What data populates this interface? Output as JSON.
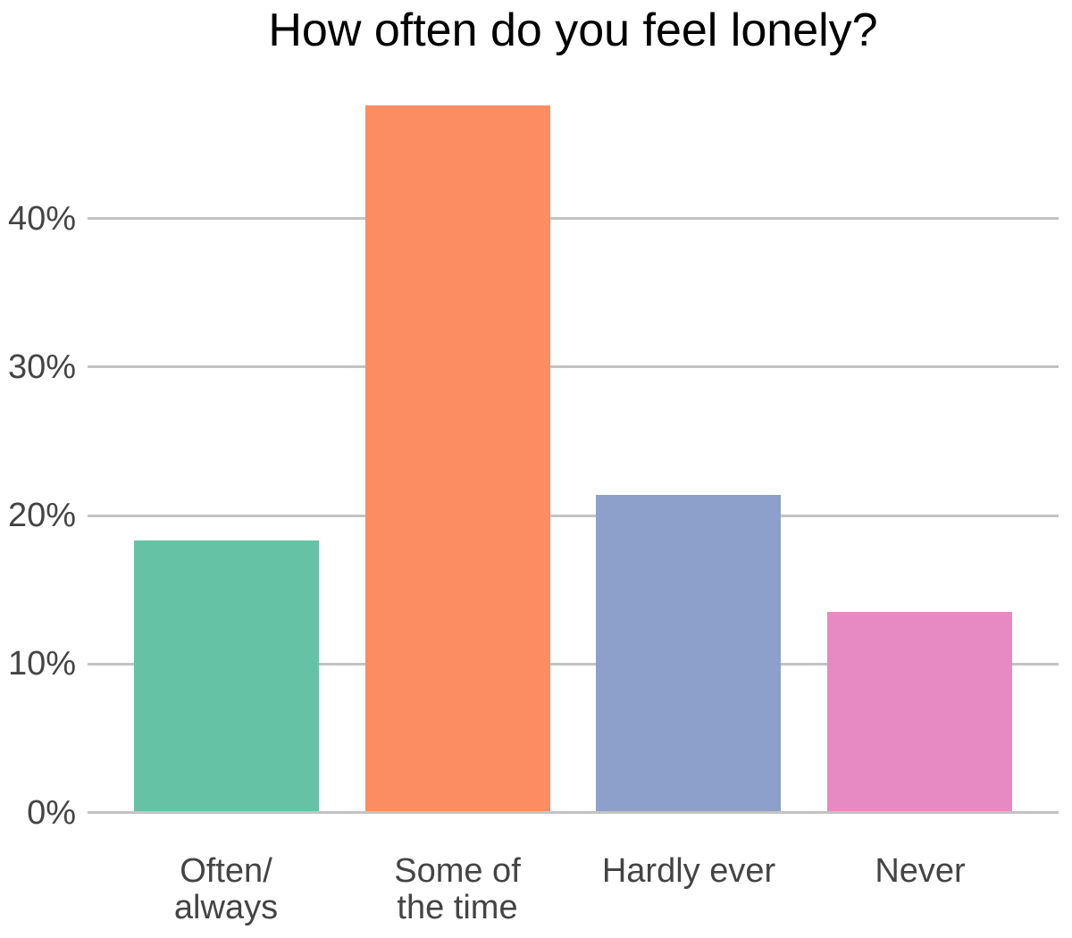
{
  "chart": {
    "title": "How often do you feel lonely?"
  },
  "chart_data": {
    "type": "bar",
    "title": "How often do you feel lonely?",
    "categories": [
      "Often/\nalways",
      "Some of\nthe time",
      "Hardly ever",
      "Never"
    ],
    "values": [
      18.2,
      47.5,
      21.3,
      13.4
    ],
    "value_unit": "percent",
    "bar_colors": [
      "#66c2a5",
      "#fc8d62",
      "#8da0cb",
      "#e78ac3"
    ],
    "xlabel": "",
    "ylabel": "",
    "y_ticks": [
      {
        "value": 0,
        "label": "0%"
      },
      {
        "value": 10,
        "label": "10%"
      },
      {
        "value": 20,
        "label": "20%"
      },
      {
        "value": 30,
        "label": "30%"
      },
      {
        "value": 40,
        "label": "40%"
      }
    ],
    "ylim": [
      0,
      48.5
    ],
    "grid": "horizontal",
    "legend_position": "none",
    "colors": {
      "background": "#ffffff",
      "gridline": "#c3c3c3",
      "axis_text": "#444444",
      "title_text": "#000000"
    }
  }
}
